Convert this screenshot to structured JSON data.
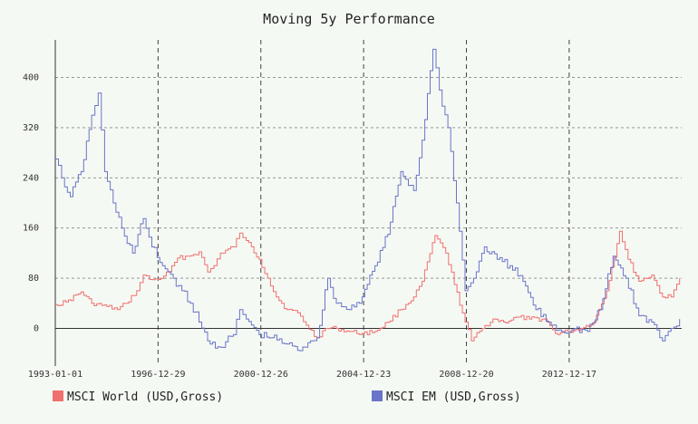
{
  "chart_data": {
    "type": "line",
    "title": "Moving 5y Performance",
    "xlabel": "",
    "ylabel": "",
    "x_tick_labels": [
      "1993-01-01",
      "1996-12-29",
      "2000-12-26",
      "2004-12-23",
      "2008-12-20",
      "2012-12-17"
    ],
    "x_range": [
      "1993-01-01",
      "2017-05-01"
    ],
    "y_ticks": [
      0,
      80,
      160,
      240,
      320,
      400
    ],
    "ylim": [
      -60,
      460
    ],
    "grid": true,
    "legend_position": "bottom",
    "series": [
      {
        "name": "MSCI World (USD,Gross)",
        "color": "#f07070",
        "points": [
          [
            "1993-01-01",
            38
          ],
          [
            "1993-06-01",
            42
          ],
          [
            "1994-01-01",
            58
          ],
          [
            "1994-06-01",
            40
          ],
          [
            "1995-01-01",
            35
          ],
          [
            "1995-06-01",
            30
          ],
          [
            "1995-10-01",
            40
          ],
          [
            "1996-03-01",
            60
          ],
          [
            "1996-06-01",
            85
          ],
          [
            "1996-09-01",
            78
          ],
          [
            "1997-01-01",
            78
          ],
          [
            "1997-06-01",
            90
          ],
          [
            "1997-10-01",
            112
          ],
          [
            "1998-03-01",
            115
          ],
          [
            "1998-08-01",
            122
          ],
          [
            "1998-12-01",
            90
          ],
          [
            "1999-03-01",
            100
          ],
          [
            "1999-06-01",
            120
          ],
          [
            "1999-12-01",
            130
          ],
          [
            "2000-03-01",
            152
          ],
          [
            "2000-06-01",
            140
          ],
          [
            "2000-12-01",
            110
          ],
          [
            "2001-04-01",
            80
          ],
          [
            "2001-08-01",
            50
          ],
          [
            "2002-01-01",
            30
          ],
          [
            "2002-06-01",
            25
          ],
          [
            "2002-10-01",
            5
          ],
          [
            "2003-03-01",
            -15
          ],
          [
            "2003-07-01",
            0
          ],
          [
            "2003-12-01",
            0
          ],
          [
            "2004-06-01",
            -5
          ],
          [
            "2004-12-01",
            -8
          ],
          [
            "2005-06-01",
            -5
          ],
          [
            "2005-12-01",
            10
          ],
          [
            "2006-06-01",
            30
          ],
          [
            "2006-12-01",
            50
          ],
          [
            "2007-04-01",
            75
          ],
          [
            "2007-10-01",
            148
          ],
          [
            "2008-03-01",
            120
          ],
          [
            "2008-07-01",
            70
          ],
          [
            "2008-12-01",
            10
          ],
          [
            "2009-03-01",
            -20
          ],
          [
            "2009-08-01",
            0
          ],
          [
            "2010-01-01",
            15
          ],
          [
            "2010-06-01",
            10
          ],
          [
            "2011-01-01",
            18
          ],
          [
            "2011-06-01",
            15
          ],
          [
            "2012-01-01",
            15
          ],
          [
            "2012-06-01",
            -8
          ],
          [
            "2012-12-01",
            -5
          ],
          [
            "2013-06-01",
            0
          ],
          [
            "2013-12-01",
            10
          ],
          [
            "2014-06-01",
            60
          ],
          [
            "2014-12-01",
            155
          ],
          [
            "2015-04-01",
            110
          ],
          [
            "2015-09-01",
            75
          ],
          [
            "2016-03-01",
            85
          ],
          [
            "2016-08-01",
            50
          ],
          [
            "2016-12-01",
            50
          ],
          [
            "2017-04-01",
            80
          ]
        ]
      },
      {
        "name": "MSCI EM (USD,Gross)",
        "color": "#6a74c9",
        "points": [
          [
            "1993-01-01",
            270
          ],
          [
            "1993-04-01",
            240
          ],
          [
            "1993-08-01",
            210
          ],
          [
            "1994-01-01",
            250
          ],
          [
            "1994-06-01",
            340
          ],
          [
            "1994-09-01",
            375
          ],
          [
            "1994-12-01",
            250
          ],
          [
            "1995-04-01",
            200
          ],
          [
            "1995-08-01",
            160
          ],
          [
            "1996-01-01",
            120
          ],
          [
            "1996-06-01",
            175
          ],
          [
            "1996-10-01",
            130
          ],
          [
            "1997-03-01",
            100
          ],
          [
            "1997-08-01",
            80
          ],
          [
            "1997-12-01",
            60
          ],
          [
            "1998-04-01",
            40
          ],
          [
            "1998-08-01",
            10
          ],
          [
            "1998-12-01",
            -20
          ],
          [
            "1999-06-01",
            -30
          ],
          [
            "1999-12-01",
            -10
          ],
          [
            "2000-03-01",
            30
          ],
          [
            "2000-06-01",
            15
          ],
          [
            "2000-12-01",
            -10
          ],
          [
            "2001-06-01",
            -15
          ],
          [
            "2002-01-01",
            -25
          ],
          [
            "2002-06-01",
            -35
          ],
          [
            "2002-12-01",
            -20
          ],
          [
            "2003-03-01",
            -15
          ],
          [
            "2003-08-01",
            80
          ],
          [
            "2003-12-01",
            40
          ],
          [
            "2004-06-01",
            30
          ],
          [
            "2004-12-01",
            50
          ],
          [
            "2005-06-01",
            100
          ],
          [
            "2005-12-01",
            150
          ],
          [
            "2006-06-01",
            250
          ],
          [
            "2006-12-01",
            220
          ],
          [
            "2007-04-01",
            300
          ],
          [
            "2007-09-01",
            445
          ],
          [
            "2007-12-01",
            380
          ],
          [
            "2008-04-01",
            320
          ],
          [
            "2008-08-01",
            200
          ],
          [
            "2008-12-01",
            60
          ],
          [
            "2009-04-01",
            80
          ],
          [
            "2009-09-01",
            130
          ],
          [
            "2010-03-01",
            110
          ],
          [
            "2010-09-01",
            100
          ],
          [
            "2011-03-01",
            75
          ],
          [
            "2011-09-01",
            30
          ],
          [
            "2012-03-01",
            10
          ],
          [
            "2012-09-01",
            -5
          ],
          [
            "2013-03-01",
            0
          ],
          [
            "2013-09-01",
            -5
          ],
          [
            "2014-03-01",
            30
          ],
          [
            "2014-09-01",
            115
          ],
          [
            "2015-03-01",
            80
          ],
          [
            "2015-09-01",
            20
          ],
          [
            "2016-03-01",
            10
          ],
          [
            "2016-08-01",
            -20
          ],
          [
            "2016-12-01",
            0
          ],
          [
            "2017-04-01",
            15
          ]
        ]
      }
    ]
  }
}
